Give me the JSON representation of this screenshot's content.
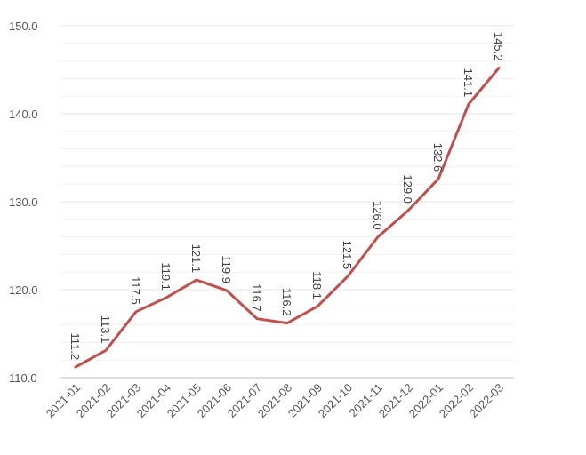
{
  "chart_data": {
    "type": "line",
    "title": "",
    "xlabel": "",
    "ylabel": "",
    "categories": [
      "2021-01",
      "2021-02",
      "2021-03",
      "2021-04",
      "2021-05",
      "2021-06",
      "2021-07",
      "2021-08",
      "2021-09",
      "2021-10",
      "2021-11",
      "2021-12",
      "2022-01",
      "2022-02",
      "2022-03"
    ],
    "series": [
      {
        "values": [
          111.2,
          113.1,
          117.5,
          119.1,
          121.1,
          119.9,
          116.7,
          116.2,
          118.1,
          121.5,
          126.0,
          129.0,
          132.6,
          141.1,
          145.2
        ],
        "labels": [
          "111.2",
          "113.1",
          "117.5",
          "119.1",
          "121.1",
          "119.9",
          "116.7",
          "116.2",
          "118.1",
          "121.5",
          "126.0",
          "129.0",
          "132.6",
          "141.1",
          "145.2"
        ],
        "color": "#c0504d"
      }
    ],
    "ylim": [
      110,
      150
    ],
    "yticks": [
      "110.0",
      "120.0",
      "130.0",
      "140.0",
      "150.0"
    ],
    "grid": true,
    "minor_grid": true,
    "legend": "none",
    "data_label_orientation": "vertical",
    "x_tick_orientation": "rotated-45"
  }
}
